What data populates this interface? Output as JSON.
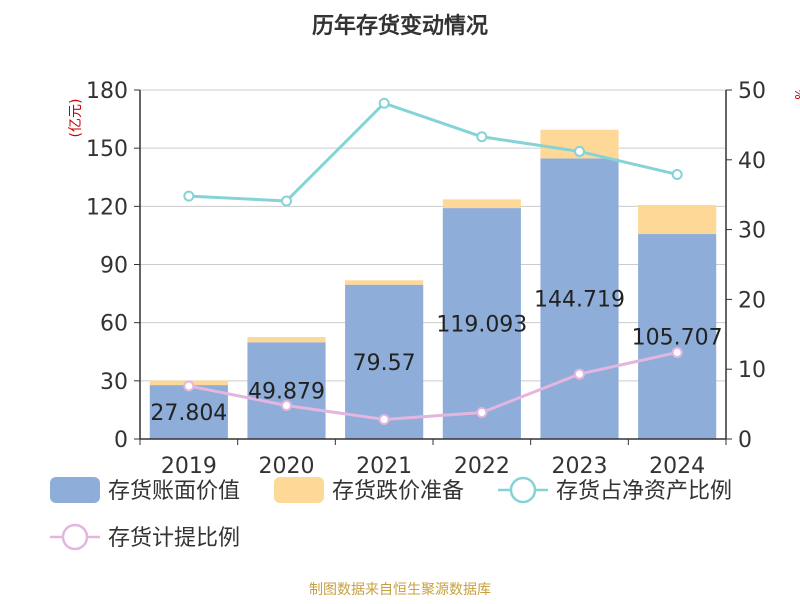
{
  "chart_data": {
    "type": "bar",
    "title": "历年存货变动情况",
    "categories": [
      "2019",
      "2020",
      "2021",
      "2022",
      "2023",
      "2024"
    ],
    "left_axis": {
      "label": "(亿元)",
      "range": [
        0,
        180
      ],
      "ticks": [
        "0",
        "30",
        "60",
        "90",
        "120",
        "150",
        "180"
      ]
    },
    "right_axis": {
      "label": "%",
      "range": [
        0,
        50
      ],
      "ticks": [
        "0",
        "10",
        "20",
        "30",
        "40",
        "50"
      ]
    },
    "series": [
      {
        "name": "存货账面价值",
        "type": "bar",
        "stack": "inv",
        "axis": "left",
        "color": "#8eadd9",
        "values": [
          27.804,
          49.879,
          79.57,
          119.093,
          144.719,
          105.707
        ],
        "labels": [
          "27.804",
          "49.879",
          "79.57",
          "119.093",
          "144.719",
          "105.707"
        ]
      },
      {
        "name": "存货跌价准备",
        "type": "bar",
        "stack": "inv",
        "axis": "left",
        "color": "#fdd896",
        "values": [
          2.3,
          2.7,
          2.3,
          4.5,
          14.8,
          15.0
        ]
      },
      {
        "name": "存货占净资产比例",
        "type": "line",
        "axis": "right",
        "color": "#85d3d7",
        "values": [
          34.8,
          34.1,
          48.1,
          43.3,
          41.2,
          37.9
        ]
      },
      {
        "name": "存货计提比例",
        "type": "line",
        "axis": "right",
        "color": "#e3b6df",
        "values": [
          7.6,
          4.8,
          2.8,
          3.8,
          9.3,
          12.4
        ]
      }
    ],
    "grid": true,
    "legend_position": "bottom"
  },
  "footer": {
    "source": "制图数据来自恒生聚源数据库"
  }
}
